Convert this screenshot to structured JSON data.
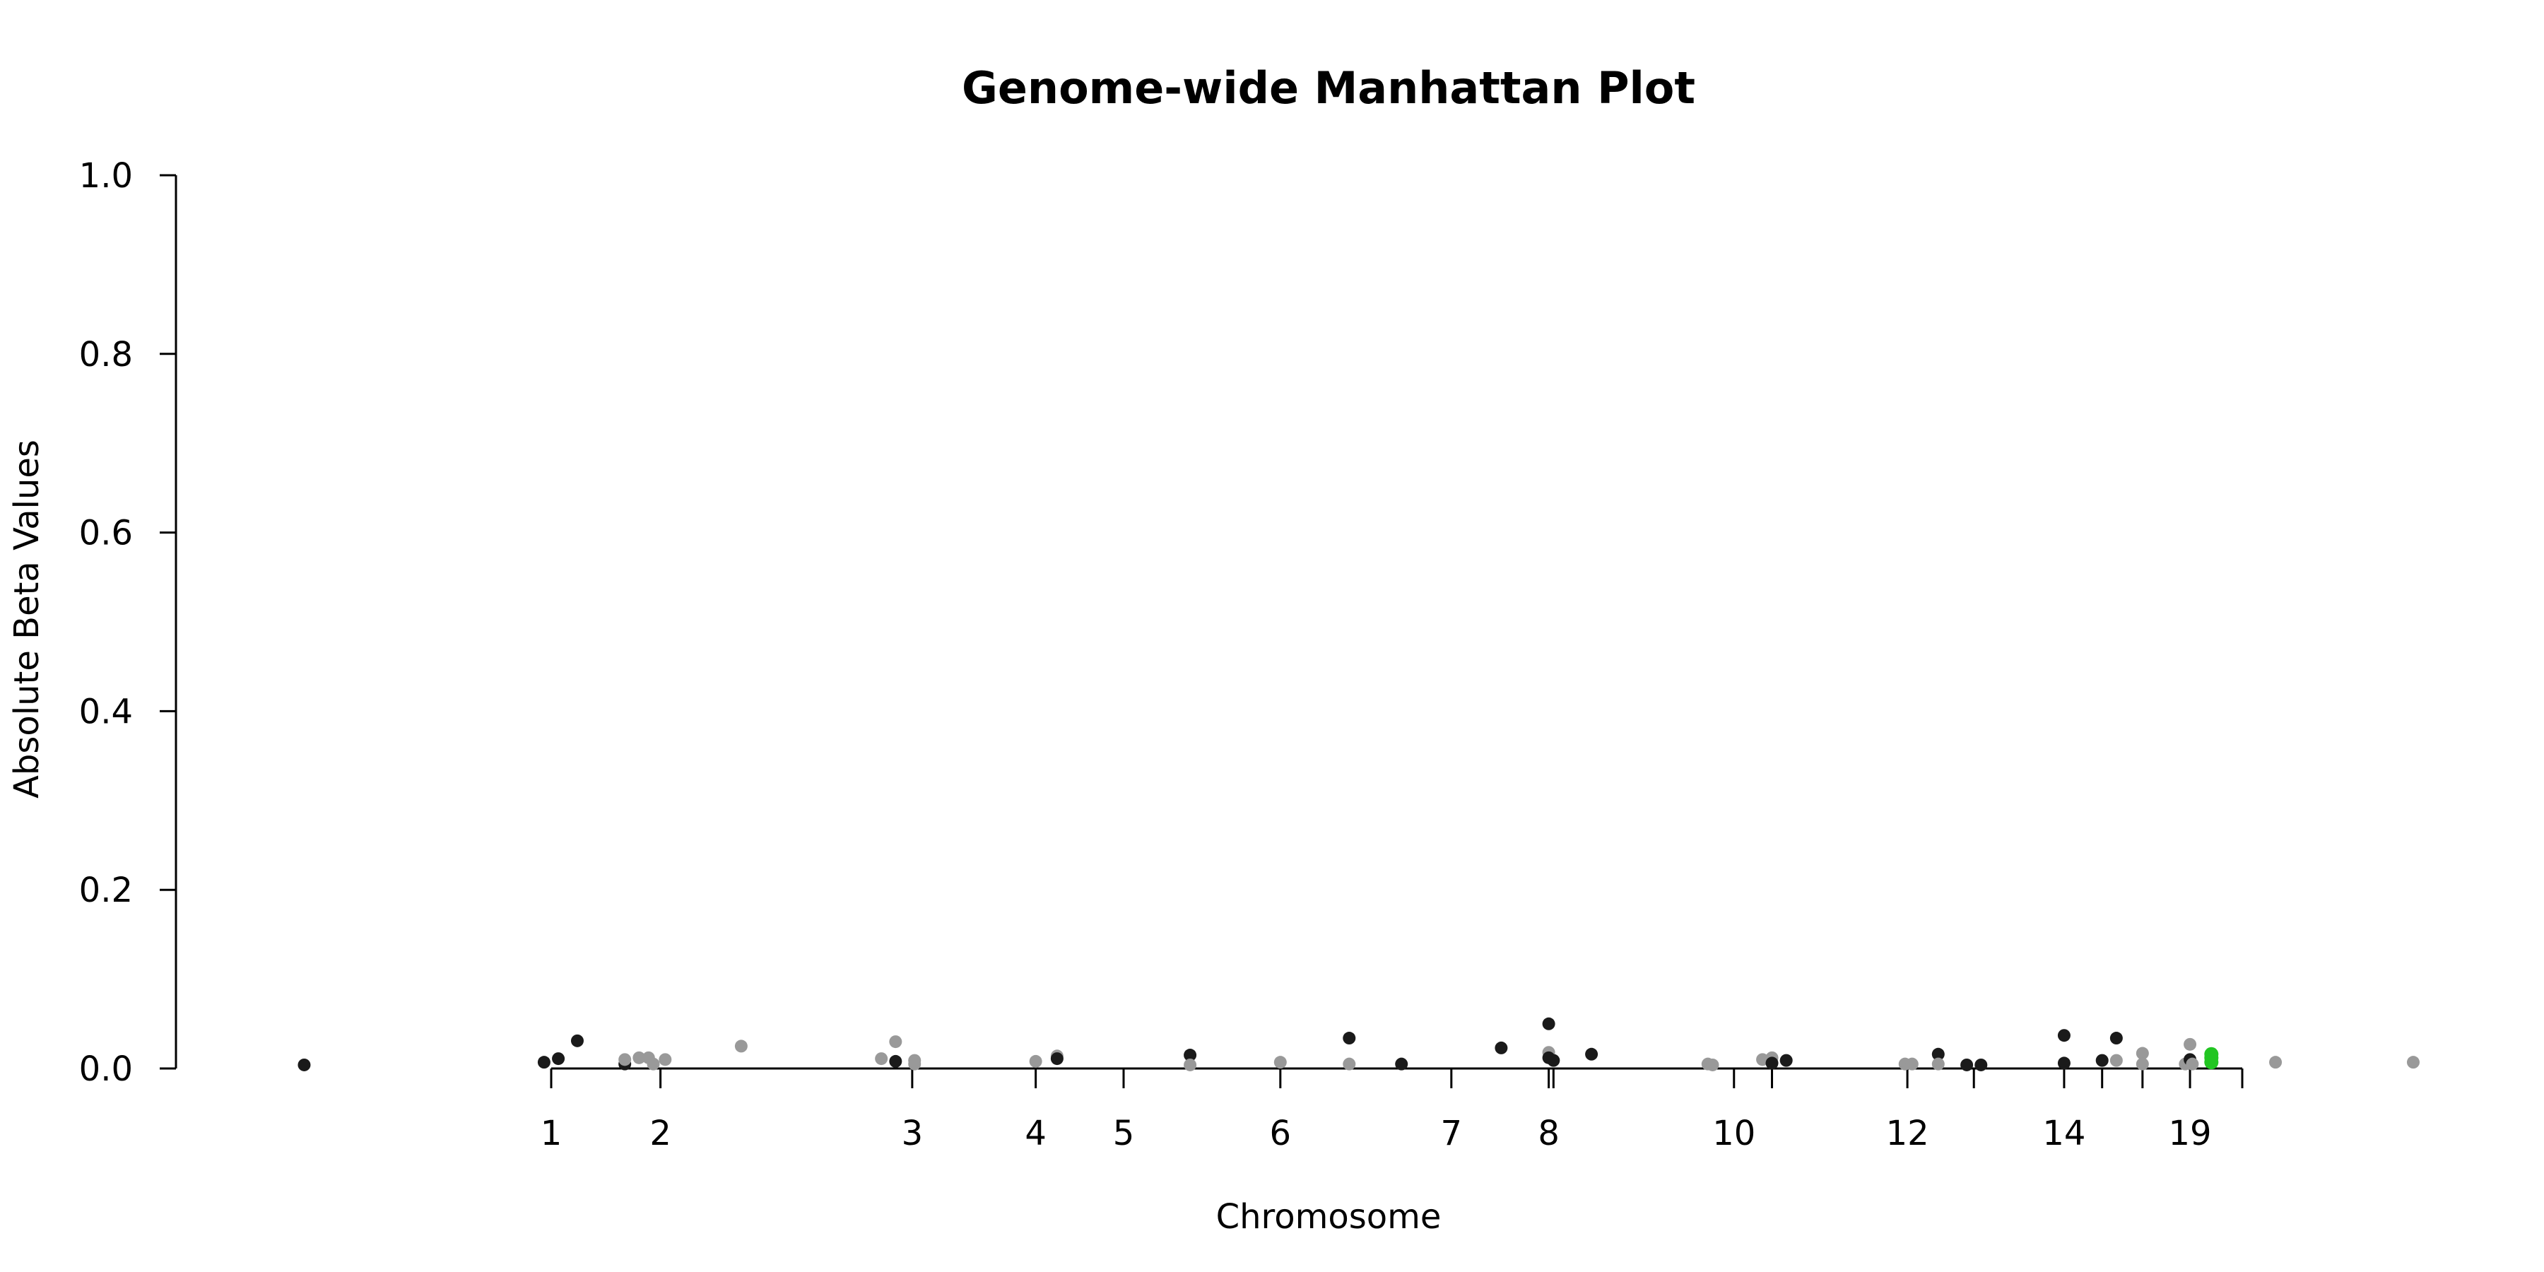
{
  "chart_data": {
    "type": "scatter",
    "title": "Genome-wide Manhattan Plot",
    "xlabel": "Chromosome",
    "ylabel": "Absolute Beta Values",
    "ylim": [
      0,
      1
    ],
    "yticks": [
      "0.0",
      "0.2",
      "0.4",
      "0.6",
      "0.8",
      "1.0"
    ],
    "ytick_values": [
      0,
      0.2,
      0.4,
      0.6,
      0.8,
      1.0
    ],
    "xlim": [
      -700,
      4700
    ],
    "xticks": [
      {
        "label": "1",
        "value": 0
      },
      {
        "label": "2",
        "value": 230
      },
      {
        "label": "3",
        "value": 760
      },
      {
        "label": "4",
        "value": 1020
      },
      {
        "label": "5",
        "value": 1205
      },
      {
        "label": "6",
        "value": 1535
      },
      {
        "label": "7",
        "value": 1895
      },
      {
        "label": "8",
        "value": 2100
      },
      {
        "label": "",
        "value": 2110
      },
      {
        "label": "10",
        "value": 2490
      },
      {
        "label": "",
        "value": 2570
      },
      {
        "label": "12",
        "value": 2855
      },
      {
        "label": "",
        "value": 2995
      },
      {
        "label": "14",
        "value": 3185
      },
      {
        "label": "",
        "value": 3265
      },
      {
        "label": "",
        "value": 3350
      },
      {
        "label": "19",
        "value": 3450
      },
      {
        "label": "",
        "value": 3560
      }
    ],
    "colors": {
      "dark": "#1a1a1a",
      "light": "#999999",
      "highlight": "#22c522"
    },
    "points": [
      {
        "x": -520,
        "y": 0.004,
        "c": "dark"
      },
      {
        "x": -15,
        "y": 0.007,
        "c": "dark"
      },
      {
        "x": 15,
        "y": 0.011,
        "c": "dark"
      },
      {
        "x": 55,
        "y": 0.031,
        "c": "dark"
      },
      {
        "x": 155,
        "y": 0.005,
        "c": "dark"
      },
      {
        "x": 155,
        "y": 0.01,
        "c": "light"
      },
      {
        "x": 185,
        "y": 0.012,
        "c": "light"
      },
      {
        "x": 205,
        "y": 0.012,
        "c": "light"
      },
      {
        "x": 215,
        "y": 0.005,
        "c": "light"
      },
      {
        "x": 240,
        "y": 0.01,
        "c": "light"
      },
      {
        "x": 400,
        "y": 0.025,
        "c": "light"
      },
      {
        "x": 695,
        "y": 0.011,
        "c": "light"
      },
      {
        "x": 725,
        "y": 0.03,
        "c": "light"
      },
      {
        "x": 725,
        "y": 0.008,
        "c": "dark"
      },
      {
        "x": 765,
        "y": 0.009,
        "c": "light"
      },
      {
        "x": 765,
        "y": 0.005,
        "c": "light"
      },
      {
        "x": 1020,
        "y": 0.008,
        "c": "light"
      },
      {
        "x": 1065,
        "y": 0.014,
        "c": "light"
      },
      {
        "x": 1065,
        "y": 0.011,
        "c": "dark"
      },
      {
        "x": 1345,
        "y": 0.015,
        "c": "dark"
      },
      {
        "x": 1345,
        "y": 0.004,
        "c": "light"
      },
      {
        "x": 1535,
        "y": 0.007,
        "c": "light"
      },
      {
        "x": 1680,
        "y": 0.034,
        "c": "dark"
      },
      {
        "x": 1680,
        "y": 0.005,
        "c": "light"
      },
      {
        "x": 1790,
        "y": 0.005,
        "c": "dark"
      },
      {
        "x": 2000,
        "y": 0.023,
        "c": "dark"
      },
      {
        "x": 2100,
        "y": 0.05,
        "c": "dark"
      },
      {
        "x": 2100,
        "y": 0.018,
        "c": "light"
      },
      {
        "x": 2100,
        "y": 0.012,
        "c": "dark"
      },
      {
        "x": 2110,
        "y": 0.009,
        "c": "dark"
      },
      {
        "x": 2190,
        "y": 0.016,
        "c": "dark"
      },
      {
        "x": 2435,
        "y": 0.005,
        "c": "light"
      },
      {
        "x": 2445,
        "y": 0.004,
        "c": "light"
      },
      {
        "x": 2550,
        "y": 0.01,
        "c": "light"
      },
      {
        "x": 2570,
        "y": 0.012,
        "c": "light"
      },
      {
        "x": 2570,
        "y": 0.006,
        "c": "dark"
      },
      {
        "x": 2600,
        "y": 0.009,
        "c": "dark"
      },
      {
        "x": 2850,
        "y": 0.005,
        "c": "light"
      },
      {
        "x": 2865,
        "y": 0.005,
        "c": "light"
      },
      {
        "x": 2920,
        "y": 0.016,
        "c": "dark"
      },
      {
        "x": 2920,
        "y": 0.005,
        "c": "light"
      },
      {
        "x": 2980,
        "y": 0.004,
        "c": "dark"
      },
      {
        "x": 3010,
        "y": 0.004,
        "c": "dark"
      },
      {
        "x": 3185,
        "y": 0.037,
        "c": "dark"
      },
      {
        "x": 3185,
        "y": 0.006,
        "c": "dark"
      },
      {
        "x": 3265,
        "y": 0.009,
        "c": "dark"
      },
      {
        "x": 3295,
        "y": 0.034,
        "c": "dark"
      },
      {
        "x": 3295,
        "y": 0.009,
        "c": "light"
      },
      {
        "x": 3350,
        "y": 0.017,
        "c": "light"
      },
      {
        "x": 3350,
        "y": 0.005,
        "c": "light"
      },
      {
        "x": 3440,
        "y": 0.005,
        "c": "light"
      },
      {
        "x": 3450,
        "y": 0.027,
        "c": "light"
      },
      {
        "x": 3450,
        "y": 0.01,
        "c": "dark"
      },
      {
        "x": 3455,
        "y": 0.005,
        "c": "light"
      },
      {
        "x": 3495,
        "y": 0.016,
        "c": "highlight"
      },
      {
        "x": 3495,
        "y": 0.012,
        "c": "highlight"
      },
      {
        "x": 3495,
        "y": 0.007,
        "c": "highlight"
      },
      {
        "x": 3630,
        "y": 0.007,
        "c": "light"
      },
      {
        "x": 3920,
        "y": 0.007,
        "c": "light"
      }
    ]
  }
}
